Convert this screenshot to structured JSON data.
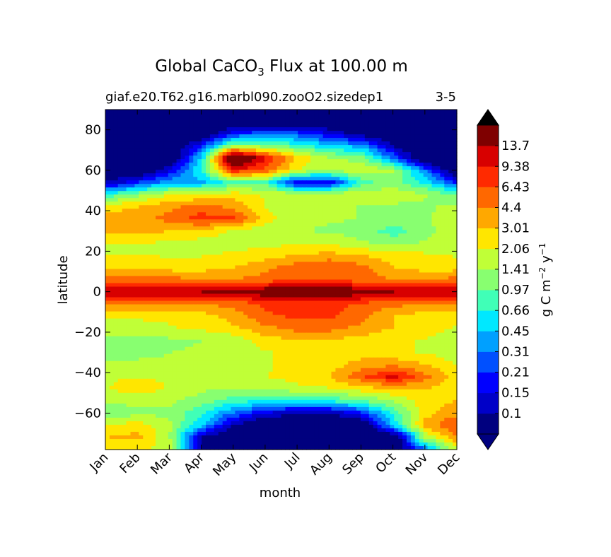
{
  "chart_data": {
    "type": "heatmap",
    "title": {
      "prefix": "Global CaCO",
      "subscript": "3",
      "suffix": " Flux at 100.00 m"
    },
    "subtitle_left": "giaf.e20.T62.g16.marbl090.zooO2.sizedep1",
    "subtitle_right": "3-5",
    "xlabel": "month",
    "ylabel": "latitude",
    "colorbar_label": {
      "base": "g C m",
      "exp1": "−2",
      "mid": " y",
      "exp2": "−1"
    },
    "x_ticks": [
      "Jan",
      "Feb",
      "Mar",
      "Apr",
      "May",
      "Jun",
      "Jul",
      "Aug",
      "Sep",
      "Oct",
      "Nov",
      "Dec"
    ],
    "y_ticks": [
      80,
      60,
      40,
      20,
      0,
      -20,
      -40,
      -60
    ],
    "ylim": [
      -78,
      90
    ],
    "levels": [
      "0.1",
      "0.15",
      "0.21",
      "0.31",
      "0.45",
      "0.66",
      "0.97",
      "1.41",
      "2.06",
      "3.01",
      "4.4",
      "6.43",
      "9.38",
      "13.7"
    ],
    "colormap": [
      "#00007f",
      "#0000c8",
      "#0000ff",
      "#0050ff",
      "#00a0ff",
      "#00e8ff",
      "#40ffb7",
      "#88ff70",
      "#c0ff37",
      "#ffe600",
      "#ffa800",
      "#ff6800",
      "#ff2a00",
      "#d80000",
      "#7f0000",
      "#000000"
    ],
    "months": [
      1,
      2,
      3,
      4,
      5,
      6,
      7,
      8,
      9,
      10,
      11,
      12
    ],
    "latitudes": [
      -78,
      -72,
      -66,
      -60,
      -54,
      -48,
      -42,
      -36,
      -30,
      -24,
      -18,
      -12,
      -6,
      0,
      6,
      12,
      18,
      24,
      30,
      36,
      42,
      48,
      54,
      60,
      66,
      72,
      78,
      84,
      90
    ],
    "values": [
      [
        2.0,
        2.0,
        2.0,
        0.1,
        0.05,
        0.05,
        0.05,
        0.05,
        0.05,
        0.05,
        0.3,
        2.0
      ],
      [
        3.0,
        3.5,
        1.5,
        0.1,
        0.05,
        0.05,
        0.05,
        0.05,
        0.05,
        0.05,
        1.5,
        4.0
      ],
      [
        2.0,
        2.5,
        1.5,
        0.5,
        0.1,
        0.05,
        0.05,
        0.05,
        0.05,
        0.5,
        3.5,
        7.0
      ],
      [
        1.0,
        1.3,
        1.3,
        0.7,
        0.3,
        0.15,
        0.1,
        0.1,
        0.2,
        0.7,
        2.5,
        4.0
      ],
      [
        1.5,
        1.6,
        1.5,
        1.2,
        0.8,
        0.6,
        0.6,
        0.7,
        0.9,
        1.5,
        2.5,
        3.0
      ],
      [
        2.0,
        2.5,
        2.0,
        1.5,
        1.4,
        1.5,
        1.8,
        2.0,
        2.5,
        3.0,
        3.0,
        2.5
      ],
      [
        2.0,
        2.0,
        2.0,
        2.0,
        1.8,
        2.0,
        2.5,
        3.0,
        6.0,
        11.0,
        5.0,
        2.5
      ],
      [
        1.5,
        1.5,
        1.5,
        1.6,
        1.8,
        2.0,
        2.2,
        2.5,
        3.5,
        4.0,
        3.0,
        2.0
      ],
      [
        1.2,
        1.3,
        1.4,
        1.5,
        1.6,
        2.0,
        2.3,
        2.5,
        2.5,
        2.2,
        2.0,
        1.6
      ],
      [
        1.2,
        1.2,
        1.3,
        1.4,
        1.6,
        2.5,
        3.0,
        3.0,
        2.5,
        2.2,
        2.0,
        1.6
      ],
      [
        1.8,
        1.8,
        2.0,
        2.2,
        2.8,
        4.0,
        5.0,
        5.0,
        4.0,
        3.0,
        2.5,
        2.0
      ],
      [
        2.2,
        2.2,
        2.2,
        2.5,
        3.5,
        6.0,
        7.0,
        7.0,
        5.0,
        3.0,
        2.5,
        2.5
      ],
      [
        4.5,
        4.5,
        4.5,
        4.5,
        5.0,
        7.0,
        8.0,
        8.0,
        6.0,
        5.0,
        4.5,
        4.5
      ],
      [
        14.0,
        14.0,
        14.0,
        14.0,
        16.0,
        20.0,
        25.0,
        25.0,
        18.0,
        14.0,
        14.0,
        14.0
      ],
      [
        5.0,
        5.0,
        5.0,
        4.5,
        4.5,
        5.0,
        6.0,
        6.0,
        5.0,
        4.5,
        4.5,
        5.0
      ],
      [
        3.0,
        3.0,
        2.5,
        2.5,
        3.0,
        4.0,
        5.5,
        6.5,
        5.0,
        3.0,
        2.5,
        2.5
      ],
      [
        2.0,
        2.0,
        2.0,
        2.0,
        2.2,
        2.5,
        3.0,
        3.5,
        3.0,
        2.5,
        2.2,
        2.0
      ],
      [
        2.0,
        2.0,
        2.0,
        1.8,
        1.8,
        1.8,
        2.0,
        2.0,
        1.5,
        1.2,
        1.5,
        2.0
      ],
      [
        3.5,
        3.5,
        3.0,
        2.5,
        2.0,
        1.6,
        1.5,
        1.3,
        1.2,
        0.8,
        1.2,
        2.0
      ],
      [
        3.5,
        4.0,
        5.0,
        8.0,
        7.0,
        2.5,
        1.6,
        1.5,
        1.4,
        1.2,
        1.3,
        2.0
      ],
      [
        2.5,
        3.0,
        4.0,
        5.0,
        4.0,
        2.0,
        1.6,
        1.5,
        1.4,
        1.3,
        1.3,
        1.6
      ],
      [
        0.7,
        1.2,
        2.0,
        2.2,
        2.5,
        2.0,
        1.8,
        1.8,
        1.8,
        1.8,
        1.5,
        0.9
      ],
      [
        0.1,
        0.2,
        0.4,
        0.4,
        0.8,
        0.8,
        0.15,
        0.15,
        0.8,
        1.2,
        0.6,
        0.2
      ],
      [
        0.05,
        0.05,
        0.15,
        0.7,
        9.0,
        6.0,
        2.0,
        1.5,
        2.0,
        1.5,
        0.3,
        0.05
      ],
      [
        0.05,
        0.05,
        0.05,
        0.5,
        40.0,
        10.0,
        3.0,
        1.5,
        1.2,
        0.3,
        0.05,
        0.05
      ],
      [
        0.05,
        0.05,
        0.05,
        0.2,
        1.5,
        1.2,
        0.8,
        0.5,
        0.4,
        0.1,
        0.05,
        0.05
      ],
      [
        0.05,
        0.05,
        0.05,
        0.05,
        0.2,
        0.3,
        0.25,
        0.15,
        0.08,
        0.05,
        0.05,
        0.05
      ],
      [
        0.05,
        0.05,
        0.05,
        0.05,
        0.05,
        0.05,
        0.05,
        0.05,
        0.05,
        0.05,
        0.05,
        0.05
      ],
      [
        0.05,
        0.05,
        0.05,
        0.05,
        0.05,
        0.05,
        0.05,
        0.05,
        0.05,
        0.05,
        0.05,
        0.05
      ]
    ]
  }
}
